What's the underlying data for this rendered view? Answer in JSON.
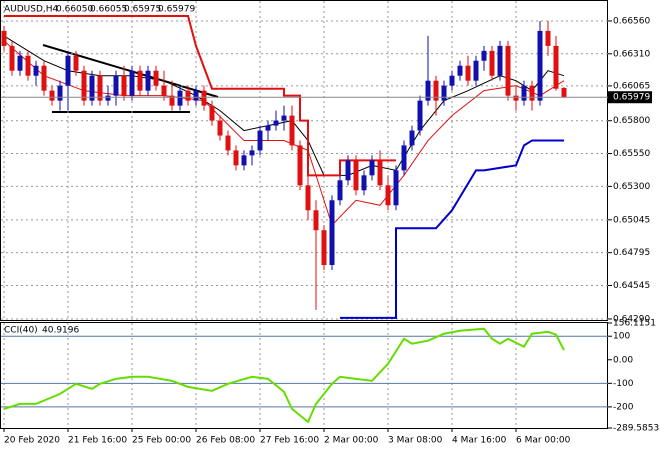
{
  "chart_data": {
    "type": "candlestick",
    "title": "AUDUSD,H4",
    "title_prices": [
      "0.66050",
      "0.66055",
      "0.65975",
      "0.65979"
    ],
    "categories": [
      "20 Feb 2020",
      null,
      null,
      null,
      null,
      null,
      null,
      null,
      "21 Feb 16:00",
      null,
      null,
      null,
      null,
      null,
      null,
      null,
      "25 Feb 00:00",
      null,
      null,
      null,
      null,
      null,
      null,
      null,
      "26 Feb 08:00",
      null,
      null,
      null,
      null,
      null,
      null,
      null,
      "27 Feb 16:00",
      null,
      null,
      null,
      null,
      null,
      null,
      null,
      "2 Mar 00:00",
      null,
      null,
      null,
      null,
      null,
      null,
      null,
      "3 Mar 08:00",
      null,
      null,
      null,
      null,
      null,
      null,
      null,
      "4 Mar 16:00",
      null,
      null,
      null,
      null,
      null,
      null,
      null,
      "6 Mar 00:00",
      null,
      null,
      null,
      null,
      null,
      null
    ],
    "open": [
      0.66484,
      0.6637,
      0.66181,
      0.66295,
      0.66143,
      0.66219,
      0.66029,
      0.65953,
      0.66067,
      0.66295,
      0.66181,
      0.65953,
      0.66143,
      0.65953,
      0.65991,
      0.66143,
      0.65991,
      0.66181,
      0.66029,
      0.66181,
      0.66067,
      0.65991,
      0.65915,
      0.66029,
      0.65953,
      0.66029,
      0.65915,
      0.65801,
      0.65687,
      0.65574,
      0.6546,
      0.65536,
      0.65574,
      0.65725,
      0.65763,
      0.65801,
      0.65839,
      0.65612,
      0.65308,
      0.65118,
      0.64966,
      0.64701,
      0.65194,
      0.65346,
      0.65498,
      0.6527,
      0.65384,
      0.65498,
      0.65308,
      0.65156,
      0.65422,
      0.65612,
      0.65725,
      0.65953,
      0.66105,
      0.65953,
      0.66067,
      0.66143,
      0.66219,
      0.66105,
      0.66257,
      0.66332,
      0.66143,
      0.6637,
      0.65991,
      0.65953,
      0.66067,
      0.65953,
      0.66484,
      0.6637,
      0.6605
    ],
    "high": [
      0.66522,
      0.66408,
      0.66332,
      0.66332,
      0.66257,
      0.66257,
      0.66067,
      0.66105,
      0.66332,
      0.66332,
      0.66219,
      0.66181,
      0.66181,
      0.66067,
      0.66181,
      0.66219,
      0.66219,
      0.66219,
      0.66219,
      0.66219,
      0.66181,
      0.66105,
      0.66067,
      0.66067,
      0.66067,
      0.66067,
      0.65953,
      0.65839,
      0.65725,
      0.65612,
      0.65574,
      0.65612,
      0.65763,
      0.65801,
      0.65877,
      0.65915,
      0.65915,
      0.65649,
      0.65384,
      0.65194,
      0.65004,
      0.65232,
      0.65384,
      0.65536,
      0.65536,
      0.65422,
      0.65536,
      0.65574,
      0.65384,
      0.6546,
      0.65649,
      0.65763,
      0.65991,
      0.66446,
      0.66143,
      0.66105,
      0.66181,
      0.66257,
      0.66295,
      0.66295,
      0.6637,
      0.6637,
      0.66408,
      0.66408,
      0.66067,
      0.66105,
      0.66105,
      0.6656,
      0.6656,
      0.66446,
      0.66055
    ],
    "low": [
      0.66332,
      0.66143,
      0.66143,
      0.66105,
      0.66067,
      0.65991,
      0.65915,
      0.65877,
      0.65877,
      0.66143,
      0.65915,
      0.65915,
      0.65915,
      0.65915,
      0.65915,
      0.65953,
      0.65953,
      0.65991,
      0.65991,
      0.66029,
      0.65953,
      0.65877,
      0.65877,
      0.65915,
      0.65915,
      0.65877,
      0.65763,
      0.65649,
      0.65536,
      0.65422,
      0.65422,
      0.6546,
      0.65536,
      0.65649,
      0.65725,
      0.65725,
      0.65574,
      0.6527,
      0.65042,
      0.64359,
      0.64663,
      0.64663,
      0.65156,
      0.65308,
      0.65232,
      0.65232,
      0.65346,
      0.6527,
      0.65118,
      0.65118,
      0.65384,
      0.65574,
      0.65687,
      0.65915,
      0.65839,
      0.65915,
      0.66029,
      0.66105,
      0.66067,
      0.66067,
      0.66181,
      0.66105,
      0.66105,
      0.65953,
      0.65877,
      0.65915,
      0.65877,
      0.65915,
      0.66295,
      0.66029,
      0.65975
    ],
    "close": [
      0.6637,
      0.66181,
      0.66295,
      0.66143,
      0.66219,
      0.66029,
      0.65953,
      0.66067,
      0.66295,
      0.66181,
      0.65953,
      0.66143,
      0.65953,
      0.65991,
      0.66143,
      0.65991,
      0.66181,
      0.66029,
      0.66181,
      0.66067,
      0.65991,
      0.65915,
      0.66029,
      0.65953,
      0.66029,
      0.65915,
      0.65801,
      0.65687,
      0.65574,
      0.6546,
      0.65536,
      0.65574,
      0.65725,
      0.65763,
      0.65801,
      0.65839,
      0.65612,
      0.65308,
      0.65118,
      0.64966,
      0.64701,
      0.65194,
      0.65346,
      0.65498,
      0.6527,
      0.65384,
      0.65498,
      0.65308,
      0.65156,
      0.65422,
      0.65612,
      0.65725,
      0.65953,
      0.66105,
      0.65953,
      0.66067,
      0.66143,
      0.66219,
      0.66105,
      0.66257,
      0.66332,
      0.66143,
      0.6637,
      0.65991,
      0.65953,
      0.66067,
      0.65953,
      0.66484,
      0.6637,
      0.66044,
      0.65979
    ],
    "up_color": "#1010b0",
    "down_color": "#e01010",
    "lines": [
      {
        "color": "#000000",
        "width": 1,
        "x": [
          0,
          5,
          8,
          12,
          16,
          20,
          24,
          27,
          30,
          33,
          36,
          38,
          40,
          43,
          46,
          49,
          52,
          55,
          58,
          62,
          64,
          66,
          68,
          70
        ],
        "values": [
          0.66446,
          0.66257,
          0.66181,
          0.66143,
          0.66143,
          0.66105,
          0.65991,
          0.65877,
          0.65725,
          0.65763,
          0.65801,
          0.65649,
          0.65384,
          0.65384,
          0.6546,
          0.65422,
          0.65725,
          0.65953,
          0.66029,
          0.66143,
          0.66105,
          0.66029,
          0.66181,
          0.66143
        ]
      },
      {
        "color": "#e01010",
        "width": 1,
        "x": [
          0,
          5,
          10,
          15,
          20,
          25,
          30,
          35,
          38,
          41,
          44,
          47,
          50,
          53,
          56,
          60,
          64,
          67,
          70
        ],
        "values": [
          0.66408,
          0.66143,
          0.66029,
          0.65991,
          0.65991,
          0.65953,
          0.65649,
          0.65649,
          0.65574,
          0.65004,
          0.65194,
          0.65156,
          0.65384,
          0.65649,
          0.65839,
          0.66029,
          0.66067,
          0.65991,
          0.66105
        ]
      },
      {
        "color": "#e01010",
        "width": 2,
        "x": [
          0,
          23,
          24,
          26,
          35,
          35,
          37,
          37,
          38,
          38,
          42,
          42,
          49
        ],
        "values": [
          0.66598,
          0.66598,
          0.6637,
          0.66044,
          0.66044,
          0.65991,
          0.65991,
          0.65801,
          0.65801,
          0.65384,
          0.65384,
          0.65498,
          0.65498
        ]
      },
      {
        "color": "#0000cc",
        "width": 2,
        "x": [
          42,
          49,
          49,
          54,
          56,
          59,
          60,
          64,
          65,
          66,
          70
        ],
        "values": [
          0.64298,
          0.64298,
          0.64981,
          0.64981,
          0.65118,
          0.65422,
          0.65422,
          0.6546,
          0.65612,
          0.65649,
          0.65649
        ]
      }
    ],
    "ylim": [
      0.64282,
      0.66712
    ],
    "yticks": [
      {
        "value": 0.6656,
        "label": "0.66560"
      },
      {
        "value": 0.6631,
        "label": "0.66310"
      },
      {
        "value": 0.66065,
        "label": "0.66065"
      },
      {
        "value": 0.658,
        "label": "0.65800"
      },
      {
        "value": 0.6555,
        "label": "0.65550"
      },
      {
        "value": 0.653,
        "label": "0.65300"
      },
      {
        "value": 0.65045,
        "label": "0.65045"
      },
      {
        "value": 0.64795,
        "label": "0.64795"
      },
      {
        "value": 0.64545,
        "label": "0.64545"
      },
      {
        "value": 0.6429,
        "label": "0.64290"
      }
    ],
    "grid": true,
    "indicator": {
      "type": "line",
      "title": "CCI(40)",
      "color": "#66dd00",
      "x": [
        0,
        2,
        4,
        7,
        9,
        11,
        12,
        14,
        16,
        18,
        21,
        23,
        26,
        28,
        31,
        33,
        35,
        36,
        38,
        39,
        41,
        42,
        44,
        46,
        48,
        50,
        51,
        53,
        55,
        57,
        60,
        61,
        62,
        63,
        65,
        66,
        68,
        69,
        70
      ],
      "values": [
        -208.5,
        -187.2,
        -187.2,
        -144.7,
        -102.1,
        -123.4,
        -102.1,
        -80.9,
        -72.3,
        -72.3,
        -89.4,
        -114.9,
        -131.9,
        -102.1,
        -72.3,
        -80.9,
        -136.2,
        -208.5,
        -263.8,
        -187.2,
        -102.1,
        -72.3,
        -80.9,
        -89.4,
        -17.0,
        89.4,
        68.1,
        80.9,
        110.6,
        123.4,
        131.9,
        89.4,
        68.1,
        89.4,
        55.3,
        110.6,
        119.1,
        106.4,
        40.9196
      ],
      "ylim": [
        -289.5853,
        156.1151
      ],
      "yticks": [
        156.1151,
        100,
        {
          "value": 0,
          "label": "0.00"
        },
        -100,
        -200,
        -289.5853
      ],
      "levels": [
        100,
        -100,
        -200
      ],
      "level_color": "#5577aa"
    }
  }
}
